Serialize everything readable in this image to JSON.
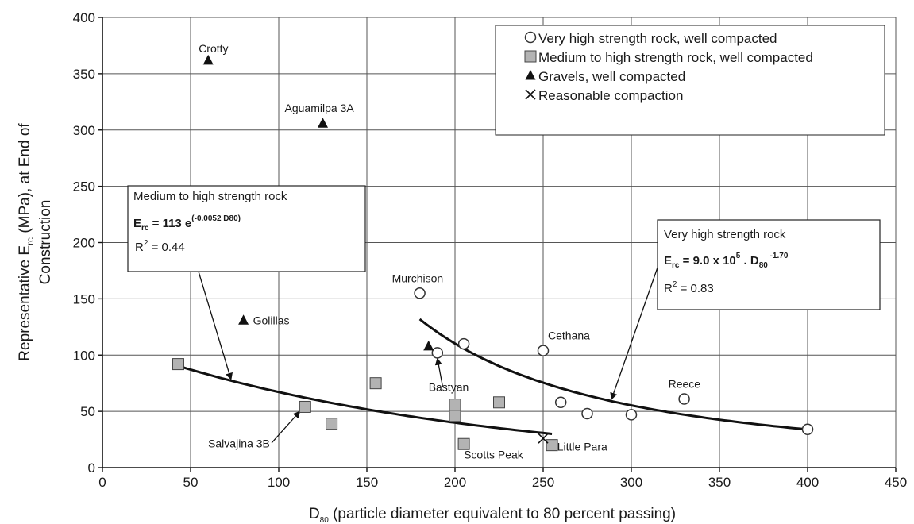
{
  "chart_data": {
    "type": "scatter",
    "xlabel_main": "D",
    "xlabel_sub": "80",
    "xlabel_rest": " (particle diameter equivalent to 80 percent passing)",
    "ylabel_line1_pre": "Representative E",
    "ylabel_line1_sub": "rc",
    "ylabel_line1_post": " (MPa), at End of",
    "ylabel_line2": "Construction",
    "xlim": [
      0,
      450
    ],
    "ylim": [
      0,
      400
    ],
    "x_ticks": [
      "0",
      "50",
      "100",
      "150",
      "200",
      "250",
      "300",
      "350",
      "400",
      "450"
    ],
    "y_ticks": [
      "0",
      "50",
      "100",
      "150",
      "200",
      "250",
      "300",
      "350",
      "400"
    ],
    "grid": true,
    "legend_position": "top-right",
    "legend": [
      {
        "marker": "circle",
        "label": "Very high strength rock, well compacted"
      },
      {
        "marker": "square",
        "label": "Medium to high strength rock, well compacted"
      },
      {
        "marker": "triangle",
        "label": "Gravels, well compacted"
      },
      {
        "marker": "cross",
        "label": "Reasonable compaction"
      }
    ],
    "series": [
      {
        "name": "Very high strength rock, well compacted",
        "marker": "circle",
        "points": [
          {
            "x": 180,
            "y": 155,
            "label": "Murchison"
          },
          {
            "x": 190,
            "y": 102,
            "label": ""
          },
          {
            "x": 205,
            "y": 110,
            "label": ""
          },
          {
            "x": 250,
            "y": 104,
            "label": "Cethana"
          },
          {
            "x": 260,
            "y": 58,
            "label": ""
          },
          {
            "x": 275,
            "y": 48,
            "label": ""
          },
          {
            "x": 300,
            "y": 47,
            "label": ""
          },
          {
            "x": 330,
            "y": 61,
            "label": "Reece"
          },
          {
            "x": 400,
            "y": 34,
            "label": ""
          }
        ]
      },
      {
        "name": "Medium to high strength rock, well compacted",
        "marker": "square",
        "points": [
          {
            "x": 43,
            "y": 92,
            "label": ""
          },
          {
            "x": 115,
            "y": 54,
            "label": ""
          },
          {
            "x": 130,
            "y": 39,
            "label": ""
          },
          {
            "x": 155,
            "y": 75,
            "label": ""
          },
          {
            "x": 200,
            "y": 56,
            "label": ""
          },
          {
            "x": 200,
            "y": 46,
            "label": ""
          },
          {
            "x": 205,
            "y": 21,
            "label": ""
          },
          {
            "x": 225,
            "y": 58,
            "label": ""
          },
          {
            "x": 255,
            "y": 20,
            "label": ""
          }
        ]
      },
      {
        "name": "Gravels, well compacted",
        "marker": "triangle",
        "points": [
          {
            "x": 60,
            "y": 362,
            "label": "Crotty"
          },
          {
            "x": 125,
            "y": 306,
            "label": "Aguamilpa 3A"
          },
          {
            "x": 80,
            "y": 131,
            "label": "Golillas"
          },
          {
            "x": 185,
            "y": 108,
            "label": ""
          }
        ]
      },
      {
        "name": "Reasonable compaction",
        "marker": "cross",
        "points": [
          {
            "x": 250,
            "y": 26,
            "label": ""
          }
        ]
      }
    ],
    "fits": [
      {
        "name": "Medium to high strength rock",
        "form": "exponential",
        "a": 113,
        "b": -0.0052,
        "x_from": 45,
        "x_to": 255
      },
      {
        "name": "Very high strength rock",
        "form": "power",
        "a": 900000,
        "b": -1.7,
        "x_from": 180,
        "x_to": 400
      }
    ],
    "callout_labels": [
      {
        "text": "Bastyan",
        "x": 190,
        "y": 68
      },
      {
        "text": "Salvajina 3B",
        "x": 95,
        "y": 18
      },
      {
        "text": "Scotts Peak",
        "x": 205,
        "y": 8
      },
      {
        "text": "Little Para",
        "x": 258,
        "y": 15
      }
    ],
    "annotations": [
      {
        "title": "Medium to high strength rock",
        "eq_pre": "E",
        "eq_sub": "rc",
        "eq_mid": " = 113 e",
        "eq_sup": "(-0.0052 D80)",
        "r2_pre": "R",
        "r2_sup": "2",
        "r2_post": " = 0.44"
      },
      {
        "title": "Very high strength rock",
        "eq_pre": "E",
        "eq_sub": "rc",
        "eq_mid": " = 9.0 x 10",
        "eq_sup": "5",
        "eq_mid2": " . D",
        "eq_sub2": "80",
        "eq_sup2": " -1.70",
        "r2_pre": "R",
        "r2_sup": "2",
        "r2_post": " = 0.83"
      }
    ]
  }
}
